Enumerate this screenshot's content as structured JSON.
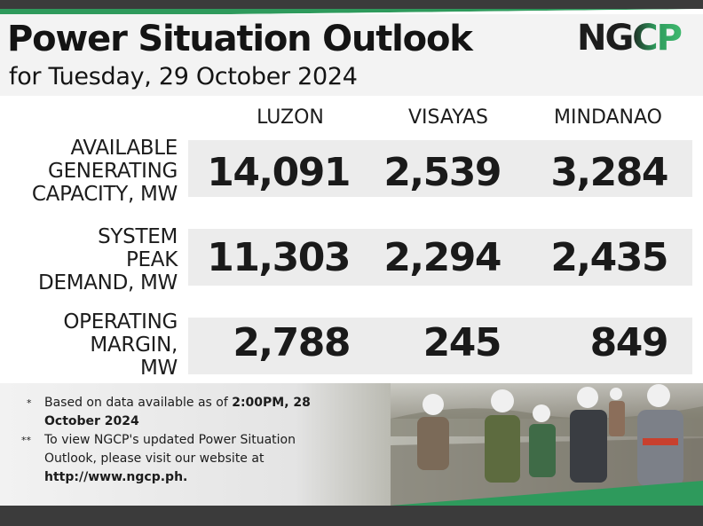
{
  "title": "Power Situation Outlook",
  "subtitle": "for Tuesday, 29 October 2024",
  "logo_text": "NGCP",
  "colors": {
    "accent": "#2e9a5c",
    "dark": "#3b3b3b",
    "band": "#ececec"
  },
  "columns": [
    "LUZON",
    "VISAYAS",
    "MINDANAO"
  ],
  "rows": [
    {
      "label_lines": [
        "AVAILABLE",
        "GENERATING",
        "CAPACITY, MW"
      ],
      "values": [
        "14,091",
        "2,539",
        "3,284"
      ]
    },
    {
      "label_lines": [
        "SYSTEM",
        "PEAK",
        "DEMAND, MW"
      ],
      "values": [
        "11,303",
        "2,294",
        "2,435"
      ]
    },
    {
      "label_lines": [
        "OPERATING",
        "MARGIN,",
        "MW"
      ],
      "values": [
        "2,788",
        "245",
        "849"
      ]
    }
  ],
  "notes": {
    "note1_mark": "*",
    "note1_text": "Based on data available as of ",
    "note1_bold": "2:00PM, 28 October 2024",
    "note2_mark": "**",
    "note2_text": "To view NGCP's updated Power Situation Outlook, please visit our website at ",
    "note2_bold": "http://www.ngcp.ph."
  }
}
